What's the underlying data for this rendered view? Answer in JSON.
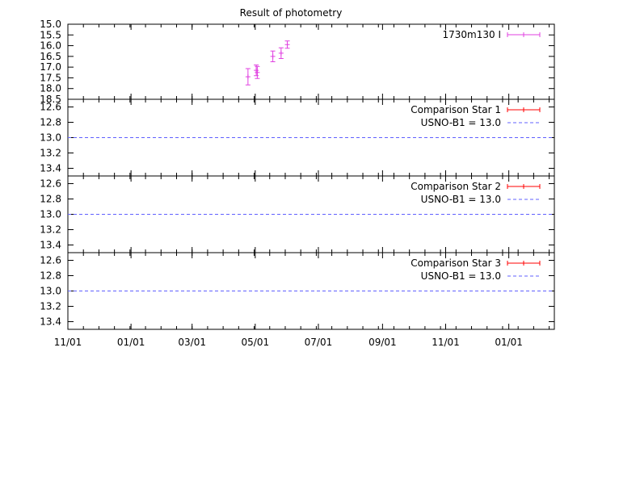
{
  "colors": {
    "target": "#e040e0",
    "comparison": "#ff0000",
    "reference_line": "#6060ff",
    "frame": "#000000"
  },
  "chart_data": {
    "type": "scatter",
    "title": "Result of photometry",
    "x_axis": {
      "type": "date",
      "range": [
        "2012-11-01",
        "2014-02-14"
      ],
      "tick_labels": [
        "11/01",
        "01/01",
        "03/01",
        "05/01",
        "07/01",
        "09/01",
        "11/01",
        "01/01"
      ],
      "tick_dates": [
        "2012-11-01",
        "2013-01-01",
        "2013-03-01",
        "2013-05-01",
        "2013-07-01",
        "2013-09-01",
        "2013-11-01",
        "2014-01-01"
      ],
      "minor_ticks_days": 15
    },
    "panels": [
      {
        "ylim": [
          15.0,
          18.5
        ],
        "y_inverted": true,
        "y_ticks": [
          15.0,
          15.5,
          16.0,
          16.5,
          17.0,
          17.5,
          18.0,
          18.5
        ],
        "y_tick_labels": [
          "15.0",
          "15.5",
          "16.0",
          "16.5",
          "17.0",
          "17.5",
          "18.0",
          "18.5"
        ],
        "series": [
          {
            "name": "1730m130 I",
            "style": "errorbars",
            "points": [
              {
                "x": "2013-04-24",
                "y": 17.45,
                "err": 0.38
              },
              {
                "x": "2013-05-02",
                "y": 17.15,
                "err": 0.25
              },
              {
                "x": "2013-05-03",
                "y": 17.25,
                "err": 0.28
              },
              {
                "x": "2013-05-18",
                "y": 16.5,
                "err": 0.25
              },
              {
                "x": "2013-05-26",
                "y": 16.35,
                "err": 0.25
              },
              {
                "x": "2013-06-01",
                "y": 15.95,
                "err": 0.17
              }
            ]
          }
        ]
      },
      {
        "ylim": [
          12.5,
          13.5
        ],
        "y_inverted": true,
        "y_ticks": [
          12.6,
          12.8,
          13.0,
          13.2,
          13.4
        ],
        "y_tick_labels": [
          "12.6",
          "12.8",
          "13.0",
          "13.2",
          "13.4"
        ],
        "series": [
          {
            "name": "Comparison Star 1",
            "style": "errorbars",
            "points": []
          },
          {
            "name": "USNO-B1 = 13.0",
            "style": "dashed-line",
            "y": 13.0
          }
        ]
      },
      {
        "ylim": [
          12.5,
          13.5
        ],
        "y_inverted": true,
        "y_ticks": [
          12.6,
          12.8,
          13.0,
          13.2,
          13.4
        ],
        "y_tick_labels": [
          "12.6",
          "12.8",
          "13.0",
          "13.2",
          "13.4"
        ],
        "series": [
          {
            "name": "Comparison Star 2",
            "style": "errorbars",
            "points": []
          },
          {
            "name": "USNO-B1 = 13.0",
            "style": "dashed-line",
            "y": 13.0
          }
        ]
      },
      {
        "ylim": [
          12.5,
          13.5
        ],
        "y_inverted": true,
        "y_ticks": [
          12.6,
          12.8,
          13.0,
          13.2,
          13.4
        ],
        "y_tick_labels": [
          "12.6",
          "12.8",
          "13.0",
          "13.2",
          "13.4"
        ],
        "series": [
          {
            "name": "Comparison Star 3",
            "style": "errorbars",
            "points": []
          },
          {
            "name": "USNO-B1 = 13.0",
            "style": "dashed-line",
            "y": 13.0
          }
        ]
      }
    ],
    "legend_position": "top-right",
    "grid": false
  }
}
